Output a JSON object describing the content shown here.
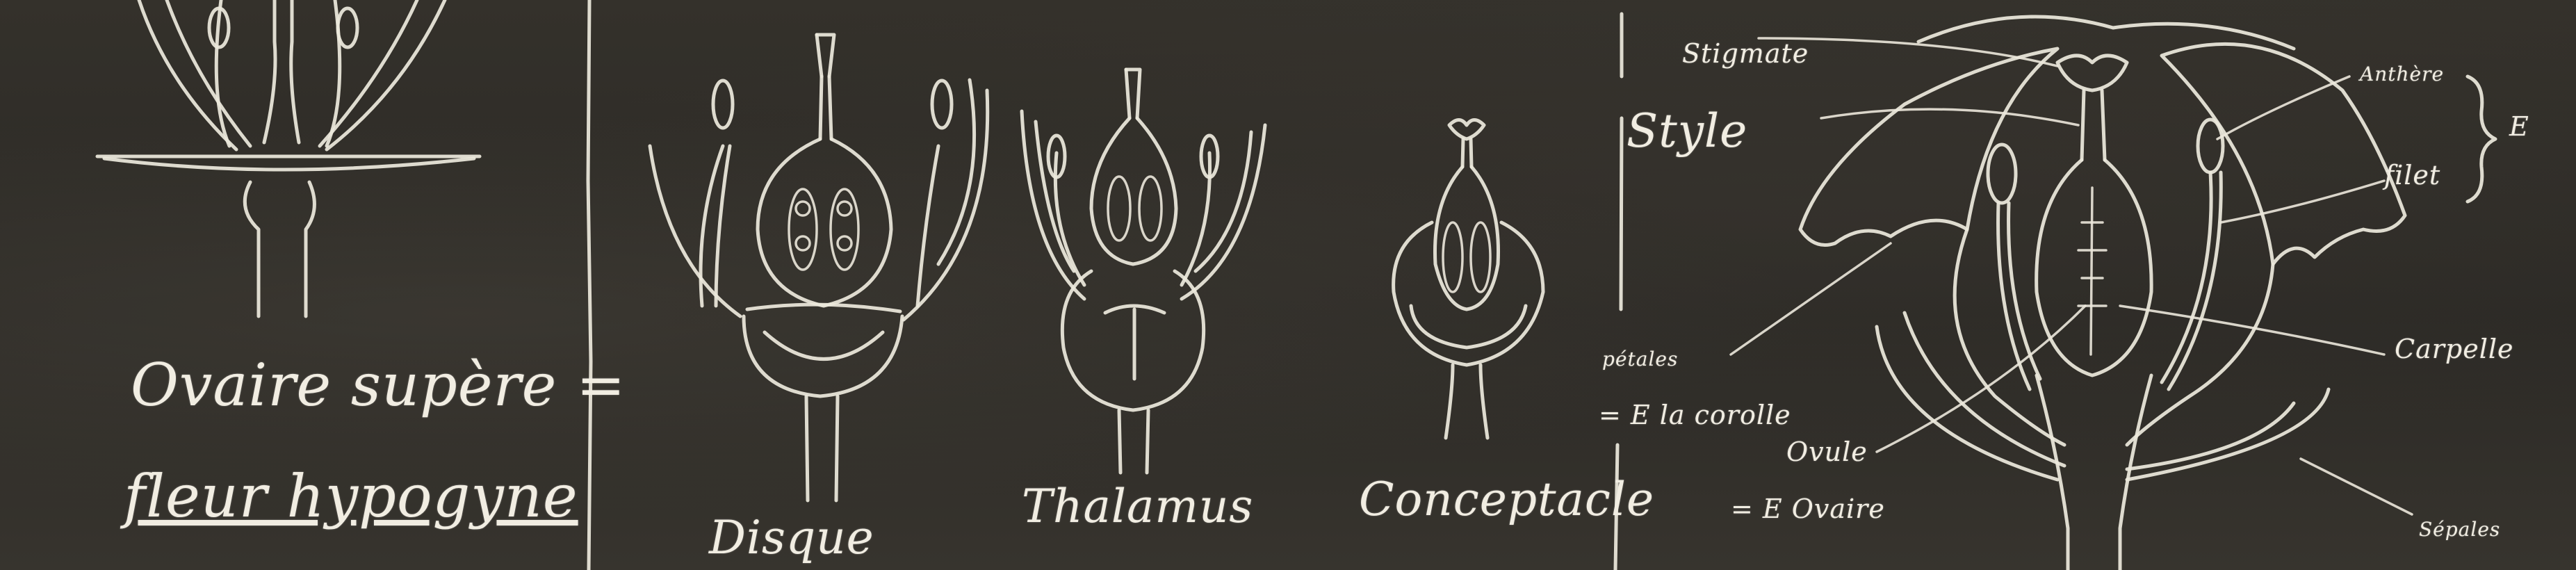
{
  "board": {
    "left_panel": {
      "title_line1": "Ovaire supère =",
      "title_line2": "fleur hypogyne"
    },
    "middle_panel": {
      "label_disque": "Disque",
      "label_thalamus": "Thalamus",
      "label_conceptacle": "Conceptacle"
    },
    "right_panel": {
      "label_stigmate": "Stigmate",
      "label_style": "Style",
      "label_anthere": "Anthère",
      "label_brace_e": "E",
      "label_filet": "filet",
      "label_petales": "pétales",
      "label_corolle": "= E la corolle",
      "label_ovule": "Ovule",
      "label_ovaire": "= E Ovaire",
      "label_carpelle": "Carpelle",
      "label_sepales": "Sépales"
    }
  },
  "colors": {
    "chalk": "#ece8dc",
    "board": "#2b2925"
  }
}
